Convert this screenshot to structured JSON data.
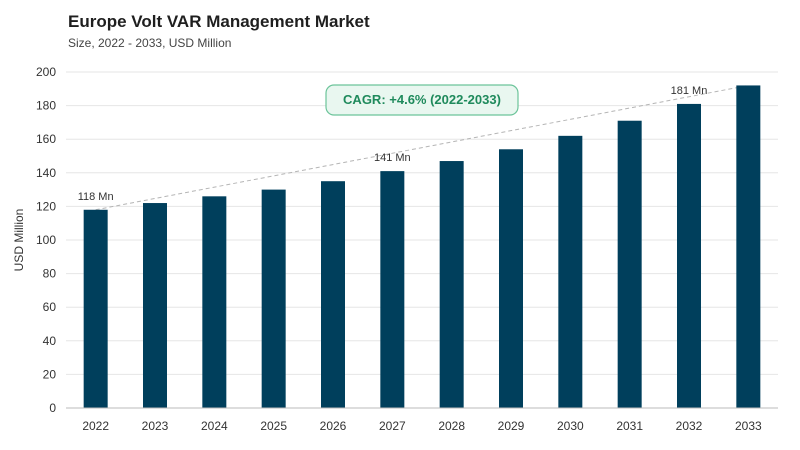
{
  "header": {
    "title": "Europe Volt VAR Management Market",
    "subtitle": "Size, 2022 - 2033, USD Million"
  },
  "chart_data": {
    "type": "bar",
    "categories": [
      "2022",
      "2023",
      "2024",
      "2025",
      "2026",
      "2027",
      "2028",
      "2029",
      "2030",
      "2031",
      "2032",
      "2033"
    ],
    "values": [
      118,
      122,
      126,
      130,
      135,
      141,
      147,
      154,
      162,
      171,
      181,
      192
    ],
    "ylabel": "USD Million",
    "xlabel": "",
    "ylim": [
      0,
      200
    ],
    "yticks": [
      0,
      20,
      40,
      60,
      80,
      100,
      120,
      140,
      160,
      180,
      200
    ],
    "grid": true,
    "bar_color": "#003f5c",
    "data_labels": [
      {
        "category": "2022",
        "text": "118 Mn"
      },
      {
        "category": "2027",
        "text": "141 Mn"
      },
      {
        "category": "2032",
        "text": "181 Mn"
      }
    ],
    "annotation": {
      "text": "CAGR: +4.6% (2022-2033)",
      "color": "#1f8a5c",
      "background": "#e9f7f0"
    },
    "trend_line": {
      "from": "2022",
      "to": "2033",
      "style": "dashed"
    }
  }
}
